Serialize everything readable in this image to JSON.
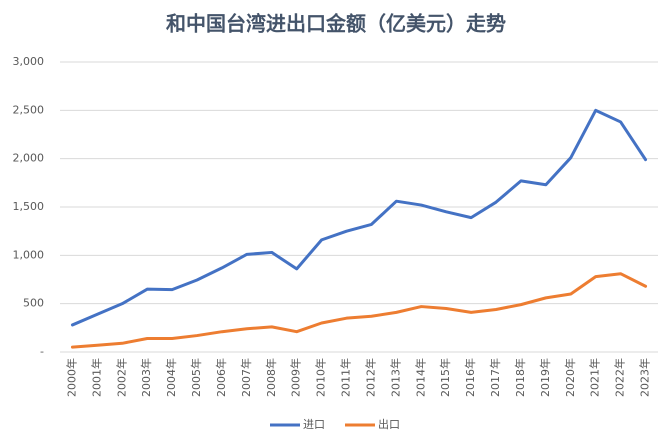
{
  "chart_data": {
    "type": "line",
    "title": "和中国台湾进出口金额（亿美元）走势",
    "categories": [
      "2000年",
      "2001年",
      "2002年",
      "2003年",
      "2004年",
      "2005年",
      "2006年",
      "2007年",
      "2008年",
      "2009年",
      "2010年",
      "2011年",
      "2012年",
      "2013年",
      "2014年",
      "2015年",
      "2016年",
      "2017年",
      "2018年",
      "2019年",
      "2020年",
      "2021年",
      "2022年",
      "2023年"
    ],
    "series": [
      {
        "name": "进口",
        "color": "#4472c4",
        "values": [
          280,
          390,
          500,
          650,
          645,
          745,
          870,
          1010,
          1030,
          860,
          1160,
          1250,
          1320,
          1560,
          1520,
          1450,
          1390,
          1550,
          1770,
          1730,
          2010,
          2500,
          2380,
          1990
        ]
      },
      {
        "name": "出口",
        "color": "#ed7d31",
        "values": [
          50,
          70,
          90,
          140,
          140,
          170,
          210,
          240,
          260,
          210,
          300,
          350,
          370,
          410,
          470,
          450,
          410,
          440,
          490,
          560,
          600,
          780,
          810,
          680
        ]
      }
    ],
    "ylim": [
      0,
      3000
    ],
    "yticks": [
      {
        "value": 0,
        "label": "-"
      },
      {
        "value": 500,
        "label": "500"
      },
      {
        "value": 1000,
        "label": "1,000"
      },
      {
        "value": 1500,
        "label": "1,500"
      },
      {
        "value": 2000,
        "label": "2,000"
      },
      {
        "value": 2500,
        "label": "2,500"
      },
      {
        "value": 3000,
        "label": "3,000"
      }
    ],
    "grid": true,
    "legend": "bottom"
  }
}
